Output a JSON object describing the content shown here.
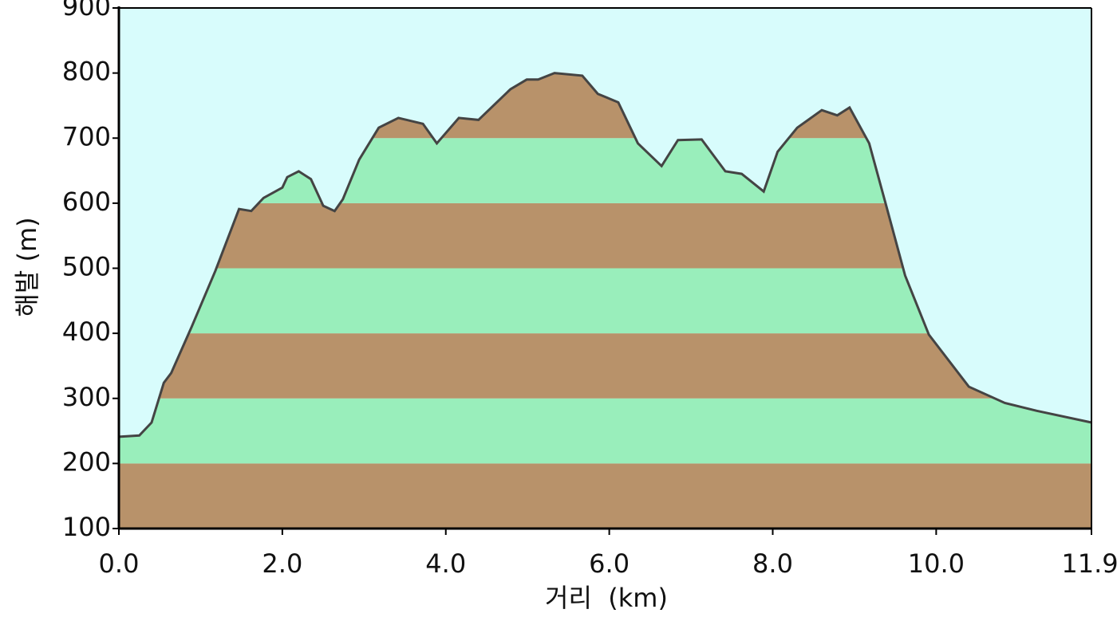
{
  "chart_data": {
    "type": "area",
    "xlabel": "거리  (km)",
    "ylabel": "해발 (m)",
    "x": [
      0,
      0.25,
      0.4,
      0.55,
      0.64,
      0.89,
      1.18,
      1.47,
      1.62,
      1.77,
      2.0,
      2.06,
      2.2,
      2.35,
      2.5,
      2.64,
      2.74,
      2.94,
      3.18,
      3.42,
      3.72,
      3.89,
      4.16,
      4.4,
      4.79,
      4.99,
      5.13,
      5.33,
      5.67,
      5.86,
      6.11,
      6.35,
      6.64,
      6.84,
      7.13,
      7.42,
      7.62,
      7.89,
      8.06,
      8.3,
      8.6,
      8.79,
      8.94,
      9.18,
      9.38,
      9.62,
      9.91,
      10.4,
      10.84,
      11.23,
      11.9
    ],
    "values": [
      241,
      243,
      263,
      324,
      339,
      410,
      496,
      591,
      588,
      608,
      624,
      640,
      649,
      637,
      596,
      588,
      606,
      667,
      716,
      731,
      722,
      692,
      731,
      728,
      775,
      790,
      790,
      800,
      796,
      768,
      755,
      692,
      657,
      697,
      698,
      649,
      645,
      618,
      679,
      716,
      743,
      735,
      747,
      692,
      600,
      489,
      398,
      318,
      293,
      281,
      263
    ],
    "xlim": [
      0,
      11.9
    ],
    "ylim": [
      100,
      900
    ],
    "xticks": [
      {
        "value": 0,
        "label": "0.0"
      },
      {
        "value": 2,
        "label": "2.0"
      },
      {
        "value": 4,
        "label": "4.0"
      },
      {
        "value": 6,
        "label": "6.0"
      },
      {
        "value": 8,
        "label": "8.0"
      },
      {
        "value": 10,
        "label": "10.0"
      },
      11.9
    ],
    "yticks": [
      100,
      200,
      300,
      400,
      500,
      600,
      700,
      800,
      900
    ],
    "line_color": "#444444",
    "background": "#d8fcfc",
    "band_colors": [
      "#b8926a",
      "#99eebb"
    ]
  }
}
